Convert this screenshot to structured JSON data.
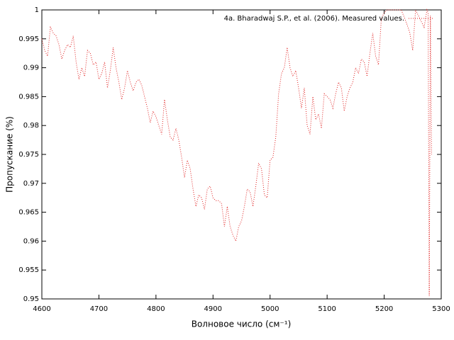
{
  "chart_data": {
    "type": "line",
    "x_label": "Волновое число (см⁻¹)",
    "y_label": "Пропускание (%)",
    "xlim": [
      4600,
      5300
    ],
    "ylim": [
      0.95,
      1
    ],
    "xticks": [
      4600,
      4700,
      4800,
      4900,
      5000,
      5100,
      5200,
      5300
    ],
    "yticks": [
      0.95,
      0.955,
      0.96,
      0.965,
      0.97,
      0.975,
      0.98,
      0.985,
      0.99,
      0.995,
      1
    ],
    "legend": "top-right",
    "series": [
      {
        "name": "4a. Bharadwaj S.P., et al. (2006). Measured values.",
        "color": "#e02020",
        "x": [
          4600,
          4605,
          4610,
          4615,
          4620,
          4625,
          4630,
          4635,
          4640,
          4645,
          4650,
          4655,
          4660,
          4665,
          4670,
          4675,
          4680,
          4685,
          4690,
          4695,
          4700,
          4705,
          4710,
          4715,
          4720,
          4725,
          4730,
          4735,
          4740,
          4745,
          4750,
          4755,
          4760,
          4765,
          4770,
          4775,
          4780,
          4785,
          4790,
          4795,
          4800,
          4805,
          4810,
          4815,
          4820,
          4825,
          4830,
          4835,
          4840,
          4845,
          4850,
          4855,
          4860,
          4865,
          4870,
          4875,
          4880,
          4885,
          4890,
          4895,
          4900,
          4905,
          4910,
          4915,
          4920,
          4925,
          4930,
          4935,
          4940,
          4945,
          4950,
          4955,
          4960,
          4965,
          4970,
          4975,
          4980,
          4985,
          4990,
          4995,
          5000,
          5005,
          5010,
          5015,
          5020,
          5025,
          5030,
          5035,
          5040,
          5045,
          5050,
          5055,
          5060,
          5065,
          5070,
          5075,
          5080,
          5085,
          5090,
          5095,
          5100,
          5105,
          5110,
          5115,
          5120,
          5125,
          5130,
          5135,
          5140,
          5145,
          5150,
          5155,
          5160,
          5165,
          5170,
          5175,
          5180,
          5185,
          5190,
          5195,
          5200,
          5205,
          5210,
          5220,
          5230,
          5240,
          5245,
          5250,
          5255,
          5260,
          5270,
          5275,
          5277,
          5279,
          5281,
          5283
        ],
        "values": [
          0.995,
          0.993,
          0.992,
          0.997,
          0.996,
          0.9955,
          0.994,
          0.9915,
          0.993,
          0.994,
          0.9935,
          0.9955,
          0.991,
          0.988,
          0.99,
          0.9885,
          0.993,
          0.9925,
          0.9905,
          0.991,
          0.988,
          0.989,
          0.991,
          0.9865,
          0.9895,
          0.9935,
          0.99,
          0.9875,
          0.9845,
          0.9865,
          0.9895,
          0.9875,
          0.986,
          0.9875,
          0.988,
          0.987,
          0.985,
          0.983,
          0.9805,
          0.9825,
          0.9815,
          0.98,
          0.9785,
          0.9845,
          0.981,
          0.978,
          0.9775,
          0.9795,
          0.9775,
          0.9745,
          0.971,
          0.974,
          0.9725,
          0.969,
          0.966,
          0.968,
          0.9675,
          0.9655,
          0.969,
          0.9695,
          0.9675,
          0.967,
          0.967,
          0.9665,
          0.9625,
          0.966,
          0.9625,
          0.961,
          0.96,
          0.9625,
          0.9635,
          0.966,
          0.969,
          0.9685,
          0.966,
          0.9695,
          0.9735,
          0.9725,
          0.968,
          0.9675,
          0.974,
          0.9745,
          0.978,
          0.9855,
          0.989,
          0.99,
          0.9935,
          0.99,
          0.9885,
          0.9895,
          0.9865,
          0.983,
          0.9865,
          0.98,
          0.9785,
          0.985,
          0.981,
          0.982,
          0.9795,
          0.9855,
          0.985,
          0.9845,
          0.983,
          0.9855,
          0.9875,
          0.9865,
          0.9825,
          0.985,
          0.9865,
          0.9875,
          0.99,
          0.989,
          0.9915,
          0.991,
          0.9885,
          0.9925,
          0.996,
          0.992,
          0.9905,
          0.9985,
          0.9995,
          1,
          1,
          1,
          1,
          0.9975,
          0.996,
          0.993,
          1,
          0.999,
          0.997,
          1,
          0.9995,
          0.9505,
          0.999,
          0.975
        ]
      }
    ]
  }
}
